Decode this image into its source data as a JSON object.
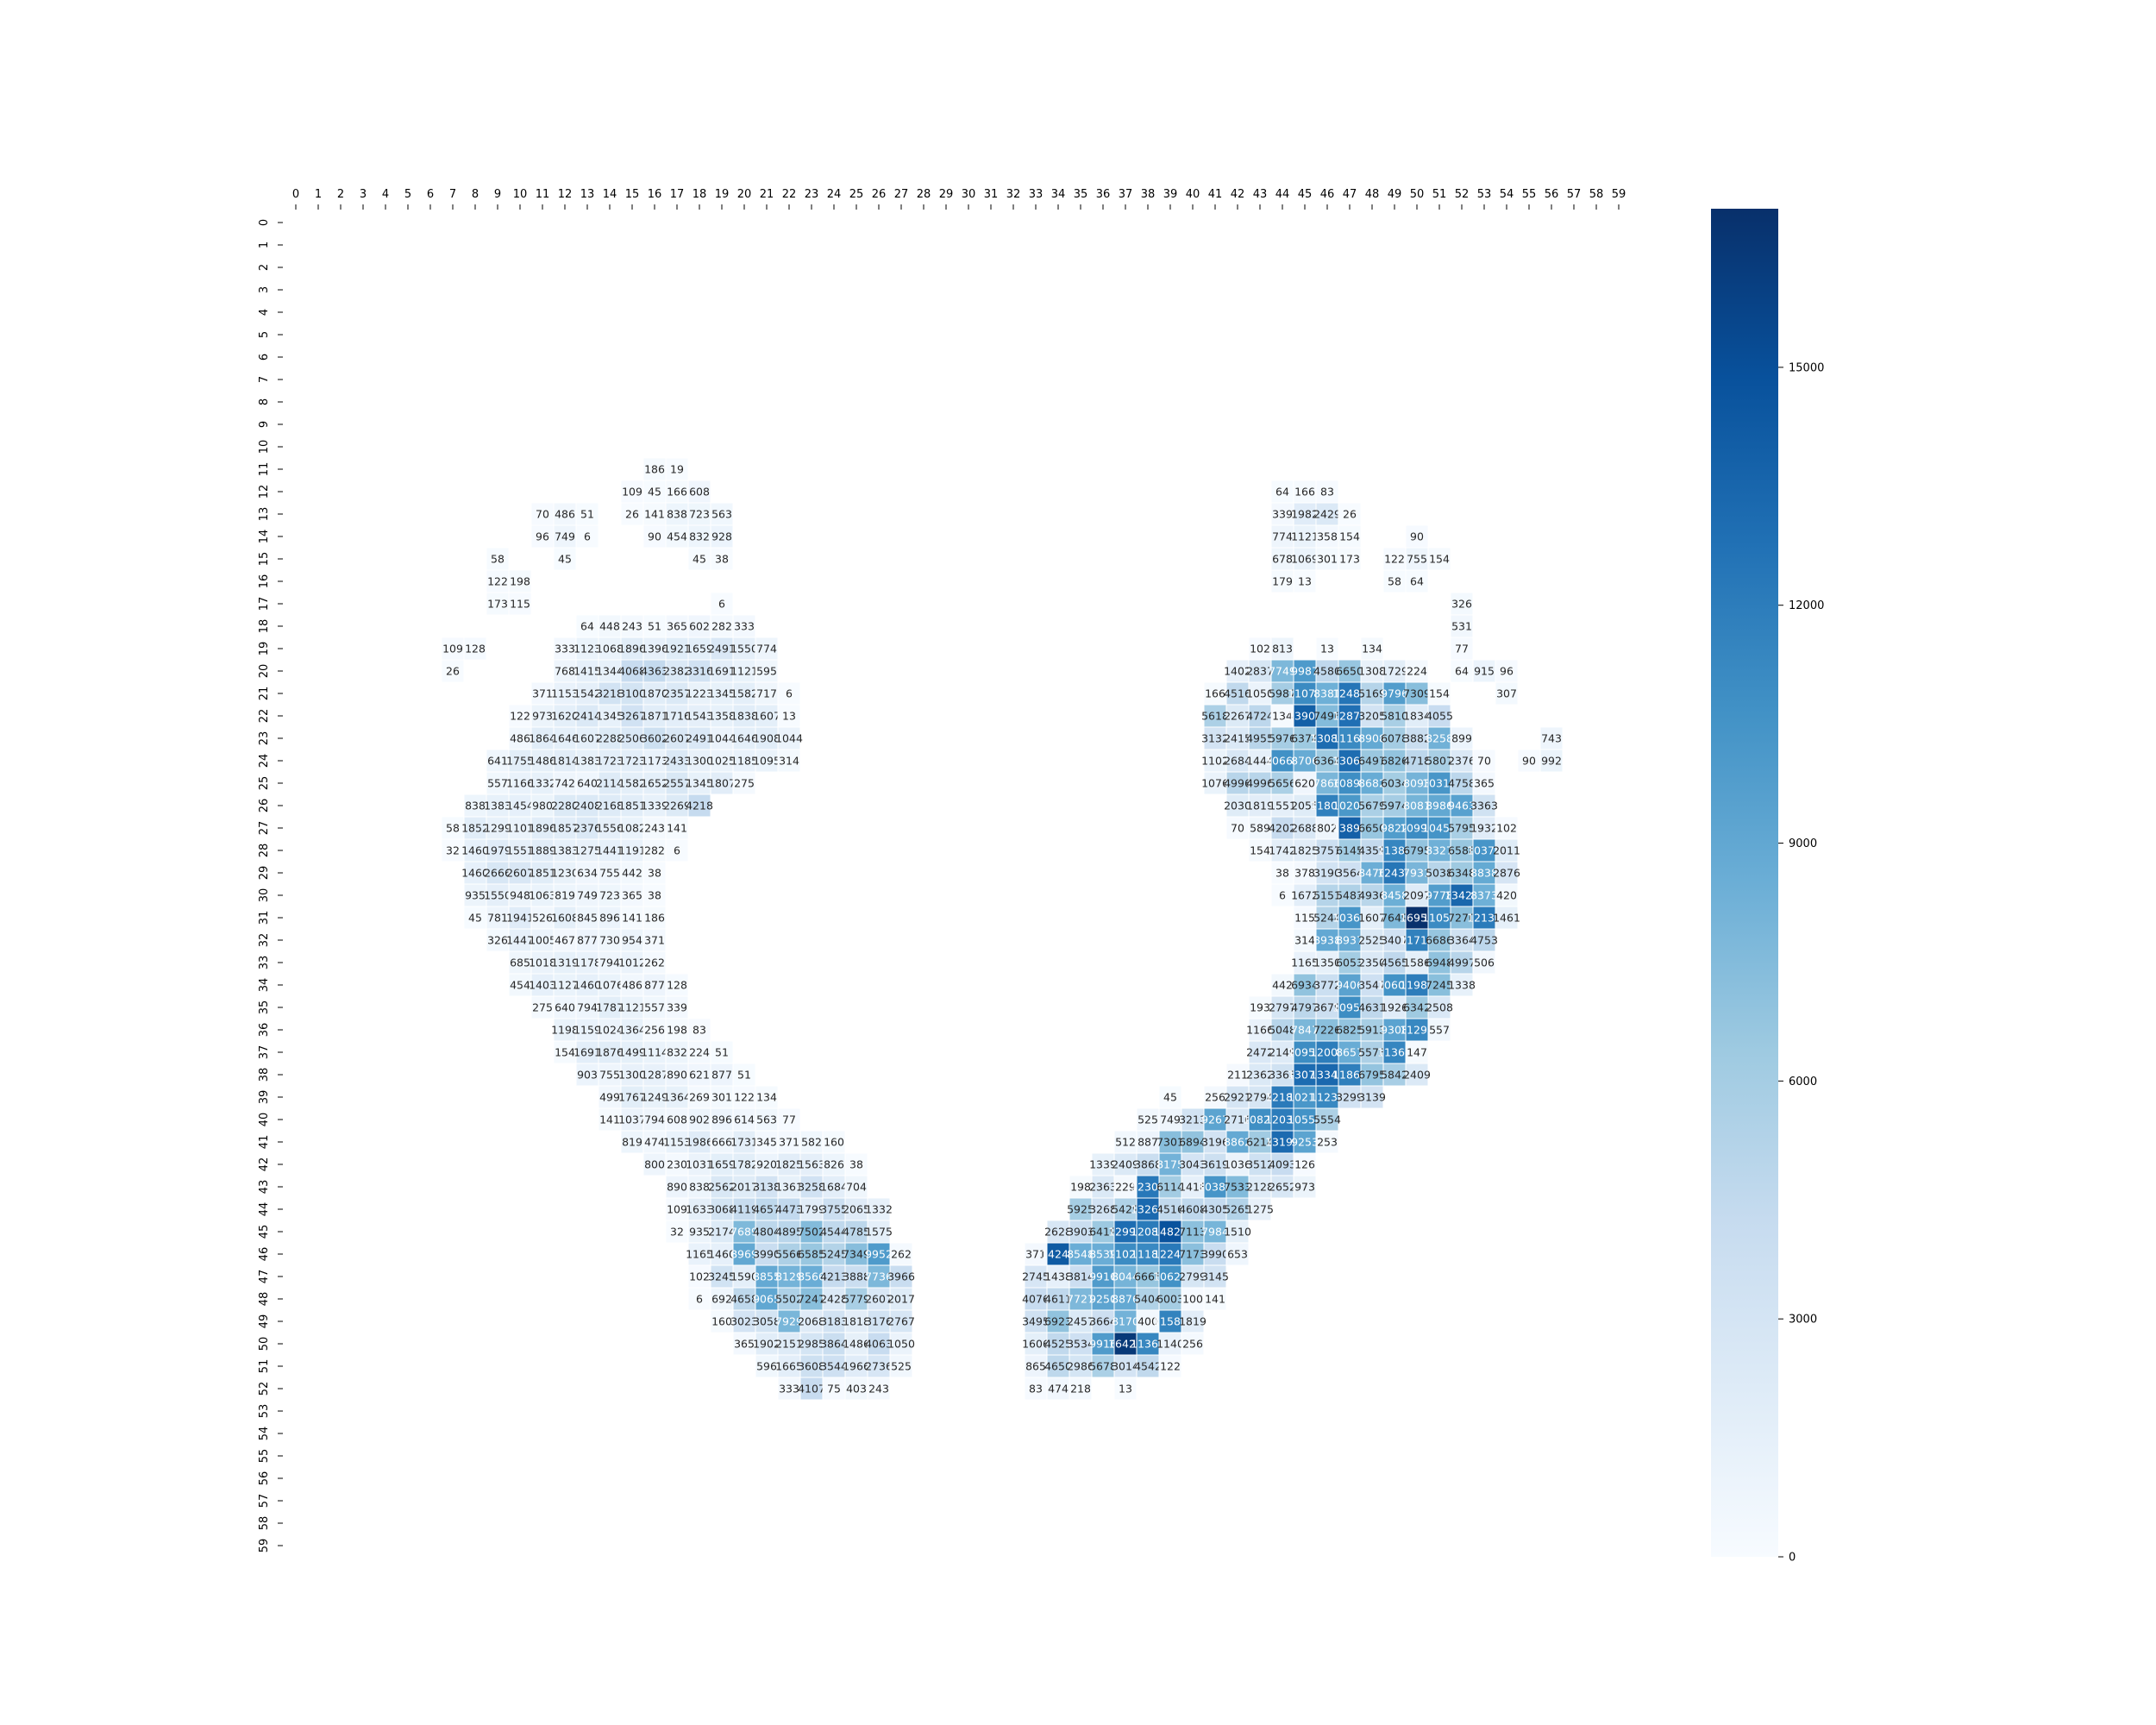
{
  "chart_data": {
    "type": "heatmap",
    "title": "",
    "xlabel": "",
    "ylabel": "",
    "x_ticks": [
      "0",
      "1",
      "2",
      "3",
      "4",
      "5",
      "6",
      "7",
      "8",
      "9",
      "10",
      "11",
      "12",
      "13",
      "14",
      "15",
      "16",
      "17",
      "18",
      "19",
      "20",
      "21",
      "22",
      "23",
      "24",
      "25",
      "26",
      "27",
      "28",
      "29",
      "30",
      "31",
      "32",
      "33",
      "34",
      "35",
      "36",
      "37",
      "38",
      "39",
      "40",
      "41",
      "42",
      "43",
      "44",
      "45",
      "46",
      "47",
      "48",
      "49",
      "50",
      "51",
      "52",
      "53",
      "54",
      "55",
      "56",
      "57",
      "58",
      "59"
    ],
    "y_ticks": [
      "0",
      "1",
      "2",
      "3",
      "4",
      "5",
      "6",
      "7",
      "8",
      "9",
      "10",
      "11",
      "12",
      "13",
      "14",
      "15",
      "16",
      "17",
      "18",
      "19",
      "20",
      "21",
      "22",
      "23",
      "24",
      "25",
      "26",
      "27",
      "28",
      "29",
      "30",
      "31",
      "32",
      "33",
      "34",
      "35",
      "36",
      "37",
      "38",
      "39",
      "40",
      "41",
      "42",
      "43",
      "44",
      "45",
      "46",
      "47",
      "48",
      "49",
      "50",
      "51",
      "52",
      "53",
      "54",
      "55",
      "56",
      "57",
      "58",
      "59"
    ],
    "x_axis_position": "top",
    "colormap": "Blues",
    "color_low": "#f7fbff",
    "color_high": "#08306b",
    "vmin": 0,
    "vmax": 17000,
    "colorbar": {
      "ticks": [
        0,
        3000,
        6000,
        9000,
        12000,
        15000
      ],
      "tick_labels": [
        "0",
        "3000",
        "6000",
        "9000",
        "12000",
        "15000"
      ],
      "position": "right"
    },
    "annotated": true,
    "rows": {
      "11": {
        "16": 186,
        "17": 19
      },
      "12": {
        "15": 109,
        "16": 45,
        "17": 166,
        "18": 608,
        "44": 64,
        "45": 166,
        "46": 83
      },
      "13": {
        "11": 70,
        "12": 486,
        "13": 51,
        "15": 26,
        "16": 141,
        "17": 838,
        "18": 723,
        "19": 563,
        "44": 339,
        "45": 1982,
        "46": 2429,
        "47": 26
      },
      "14": {
        "11": 96,
        "12": 749,
        "13": 6,
        "16": 90,
        "17": 454,
        "18": 832,
        "19": 928,
        "44": 774,
        "45": 1121,
        "46": 358,
        "47": 154,
        "50": 90
      },
      "15": {
        "9": 58,
        "12": 45,
        "18": 45,
        "19": 38,
        "44": 678,
        "45": 1069,
        "46": 301,
        "47": 173,
        "49": 122,
        "50": 755,
        "51": 154
      },
      "16": {
        "9": 122,
        "10": 198,
        "44": 179,
        "45": 13,
        "49": 58,
        "50": 64
      },
      "17": {
        "9": 173,
        "10": 115,
        "19": 6,
        "52": 326
      },
      "18": {
        "13": 64,
        "14": 448,
        "15": 243,
        "16": 51,
        "17": 365,
        "18": 602,
        "19": 282,
        "20": 333,
        "52": 531
      },
      "19": {
        "7": 109,
        "8": 128,
        "12": 333,
        "13": 1123,
        "14": 1068,
        "15": 1896,
        "16": 1396,
        "17": 1921,
        "18": 1659,
        "19": 2491,
        "20": 1550,
        "21": 774,
        "43": 102,
        "44": 813,
        "46": 13,
        "48": 134,
        "52": 77
      },
      "20": {
        "7": 26,
        "12": 768,
        "13": 1415,
        "14": 1344,
        "15": 4068,
        "16": 4363,
        "17": 2382,
        "18": 3316,
        "19": 1691,
        "20": 1121,
        "21": 595,
        "42": 1402,
        "43": 2837,
        "44": 7749,
        "45": 9987,
        "46": 4580,
        "47": 6650,
        "48": 1308,
        "49": 1729,
        "50": 224,
        "52": 64,
        "53": 915,
        "54": 96
      },
      "21": {
        "11": 371,
        "12": 1153,
        "13": 1542,
        "14": 3218,
        "15": 3100,
        "16": 1870,
        "17": 2357,
        "18": 1223,
        "19": 1345,
        "20": 1582,
        "21": 717,
        "22": 6,
        "41": 166,
        "42": 4516,
        "43": 1050,
        "44": 5987,
        "45": 11070,
        "46": 8381,
        "47": 12485,
        "48": 5169,
        "49": 9796,
        "50": 7309,
        "51": 154,
        "54": 307
      },
      "22": {
        "10": 122,
        "11": 973,
        "12": 1620,
        "13": 2414,
        "14": 1345,
        "15": 3267,
        "16": 1871,
        "17": 1716,
        "18": 1543,
        "19": 1358,
        "20": 1838,
        "21": 1607,
        "22": 13,
        "41": 5618,
        "42": 2267,
        "43": 4724,
        "44": 134,
        "45": 13902,
        "46": 7496,
        "47": 12874,
        "48": 3205,
        "49": 5810,
        "50": 1834,
        "51": 4055
      },
      "23": {
        "10": 486,
        "11": 1864,
        "12": 1646,
        "13": 1607,
        "14": 2288,
        "15": 2506,
        "16": 3602,
        "17": 2607,
        "18": 2491,
        "19": 1044,
        "20": 1646,
        "21": 1908,
        "22": 1044,
        "41": 3132,
        "42": 2415,
        "43": 4955,
        "44": 5976,
        "45": 6374,
        "46": 13083,
        "47": 11160,
        "48": 8908,
        "49": 6078,
        "50": 3882,
        "51": 8258,
        "52": 899,
        "56": 743
      },
      "24": {
        "9": 641,
        "10": 1755,
        "11": 1486,
        "12": 1814,
        "13": 1383,
        "14": 1723,
        "15": 1723,
        "16": 1173,
        "17": 2433,
        "18": 1300,
        "19": 1025,
        "20": 1185,
        "21": 1095,
        "22": 314,
        "41": 1102,
        "42": 2684,
        "43": 1444,
        "44": 10668,
        "45": 8706,
        "46": 6364,
        "47": 13062,
        "48": 6497,
        "49": 6826,
        "50": 4718,
        "51": 5807,
        "52": 2376,
        "53": 70,
        "55": 90,
        "56": 992
      },
      "25": {
        "9": 557,
        "10": 1166,
        "11": 1332,
        "12": 742,
        "13": 640,
        "14": 2114,
        "15": 1582,
        "16": 1652,
        "17": 2557,
        "18": 1345,
        "19": 1807,
        "20": 275,
        "41": 1076,
        "42": 4996,
        "43": 4996,
        "44": 5656,
        "45": 620,
        "46": 7866,
        "47": 10895,
        "48": 8682,
        "49": 6034,
        "50": 8093,
        "51": 10316,
        "52": 4758,
        "53": 365
      },
      "26": {
        "8": 838,
        "9": 1383,
        "10": 1454,
        "11": 980,
        "12": 2280,
        "13": 2408,
        "14": 2168,
        "15": 1851,
        "16": 1339,
        "17": 2269,
        "18": 4218,
        "42": 2030,
        "43": 1819,
        "44": 1551,
        "45": 2055,
        "46": 11802,
        "47": 10207,
        "48": 5679,
        "49": 5974,
        "50": 8081,
        "51": 8986,
        "52": 9463,
        "53": 3363
      },
      "27": {
        "7": 58,
        "8": 1852,
        "9": 1299,
        "10": 1101,
        "11": 1896,
        "12": 1857,
        "13": 2376,
        "14": 1556,
        "15": 1082,
        "16": 243,
        "17": 141,
        "42": 70,
        "43": 589,
        "44": 4202,
        "45": 2688,
        "46": 802,
        "47": 13891,
        "48": 6650,
        "49": 9822,
        "50": 10990,
        "51": 10456,
        "52": 5795,
        "53": 1932,
        "54": 102
      },
      "28": {
        "7": 32,
        "8": 1460,
        "9": 1979,
        "10": 1551,
        "11": 1889,
        "12": 1383,
        "13": 1275,
        "14": 1441,
        "15": 1191,
        "16": 282,
        "17": 6,
        "43": 154,
        "44": 1742,
        "45": 1825,
        "46": 3757,
        "47": 6145,
        "48": 4359,
        "49": 11382,
        "50": 6795,
        "51": 8327,
        "52": 6588,
        "53": 10372,
        "54": 2011
      },
      "29": {
        "8": 1460,
        "9": 2666,
        "10": 2607,
        "11": 1851,
        "12": 1230,
        "13": 634,
        "14": 755,
        "15": 442,
        "16": 38,
        "44": 38,
        "45": 378,
        "46": 3190,
        "47": 3564,
        "48": 8476,
        "49": 12438,
        "50": 7931,
        "51": 5038,
        "52": 6348,
        "53": 8838,
        "54": 2876
      },
      "30": {
        "8": 935,
        "9": 1550,
        "10": 948,
        "11": 1063,
        "12": 819,
        "13": 749,
        "14": 723,
        "15": 365,
        "16": 38,
        "44": 6,
        "45": 1672,
        "46": 5151,
        "47": 5483,
        "48": 4936,
        "49": 8458,
        "50": 2097,
        "51": 9778,
        "52": 13427,
        "53": 8373,
        "54": 420
      },
      "31": {
        "8": 45,
        "9": 781,
        "10": 1941,
        "11": 526,
        "12": 1608,
        "13": 845,
        "14": 896,
        "15": 141,
        "16": 186,
        "45": 115,
        "46": 5244,
        "47": 10365,
        "48": 1607,
        "49": 7649,
        "50": 16953,
        "51": 11057,
        "52": 7270,
        "53": 12137,
        "54": 1461
      },
      "32": {
        "9": 326,
        "10": 1447,
        "11": 1005,
        "12": 467,
        "13": 877,
        "14": 730,
        "15": 954,
        "16": 371,
        "45": 314,
        "46": 8938,
        "47": 8937,
        "48": 2525,
        "49": 3407,
        "50": 11716,
        "51": 6686,
        "52": 3364,
        "53": 4753
      },
      "33": {
        "10": 685,
        "11": 1018,
        "12": 1319,
        "13": 1178,
        "14": 794,
        "15": 1012,
        "16": 262,
        "45": 1165,
        "46": 1350,
        "47": 6053,
        "48": 2350,
        "49": 4565,
        "50": 1586,
        "51": 6948,
        "52": 4997,
        "53": 506
      },
      "34": {
        "10": 454,
        "11": 1403,
        "12": 1127,
        "13": 1460,
        "14": 1076,
        "15": 486,
        "16": 877,
        "17": 128,
        "44": 442,
        "45": 6934,
        "46": 3772,
        "47": 9406,
        "48": 3547,
        "49": 10603,
        "50": 11987,
        "51": 7245,
        "52": 1338
      },
      "35": {
        "11": 275,
        "12": 640,
        "13": 794,
        "14": 1787,
        "15": 1121,
        "16": 557,
        "17": 339,
        "43": 193,
        "44": 2797,
        "45": 4797,
        "46": 3679,
        "47": 10956,
        "48": 4631,
        "49": 1926,
        "50": 6342,
        "51": 2508
      },
      "36": {
        "12": 1198,
        "13": 1159,
        "14": 1024,
        "15": 1364,
        "16": 256,
        "17": 198,
        "18": 83,
        "43": 1166,
        "44": 5048,
        "45": 7847,
        "46": 7226,
        "47": 6825,
        "48": 5913,
        "49": 9308,
        "50": 11298,
        "51": 557
      },
      "37": {
        "12": 154,
        "13": 1691,
        "14": 1876,
        "15": 1499,
        "16": 1114,
        "17": 832,
        "18": 224,
        "19": 51,
        "43": 2472,
        "44": 2149,
        "45": 10950,
        "46": 12000,
        "47": 8657,
        "48": 5573,
        "49": 11369,
        "50": 147
      },
      "38": {
        "13": 903,
        "14": 755,
        "15": 1300,
        "16": 1287,
        "17": 890,
        "18": 621,
        "19": 877,
        "20": 51,
        "42": 211,
        "43": 2362,
        "44": 3363,
        "45": 13070,
        "46": 13347,
        "47": 11867,
        "48": 6795,
        "49": 5842,
        "50": 2409
      },
      "39": {
        "14": 499,
        "15": 1767,
        "16": 1249,
        "17": 1364,
        "18": 269,
        "19": 301,
        "20": 122,
        "21": 134,
        "39": 45,
        "41": 256,
        "42": 2921,
        "43": 2794,
        "44": 12180,
        "45": 10217,
        "46": 11238,
        "47": 3299,
        "48": 3139
      },
      "40": {
        "14": 141,
        "15": 1037,
        "16": 794,
        "17": 608,
        "18": 902,
        "19": 896,
        "20": 614,
        "21": 563,
        "22": 77,
        "38": 525,
        "39": 749,
        "40": 3213,
        "41": 9267,
        "42": 2716,
        "43": 10822,
        "44": 12037,
        "45": 10553,
        "46": 5554
      },
      "41": {
        "15": 819,
        "16": 474,
        "17": 1153,
        "18": 1986,
        "19": 666,
        "20": 1731,
        "21": 345,
        "22": 371,
        "23": 582,
        "24": 160,
        "37": 512,
        "38": 887,
        "39": 7301,
        "40": 6894,
        "41": 3196,
        "42": 8862,
        "43": 6214,
        "44": 13194,
        "45": 9253,
        "46": 253
      },
      "42": {
        "16": 800,
        "17": 230,
        "18": 1031,
        "19": 1659,
        "20": 1782,
        "21": 920,
        "22": 1825,
        "23": 1563,
        "24": 826,
        "25": 38,
        "36": 1339,
        "37": 2409,
        "38": 3868,
        "39": 8175,
        "40": 3043,
        "41": 3619,
        "42": 1036,
        "43": 3512,
        "44": 4093,
        "45": 126
      },
      "43": {
        "17": 890,
        "18": 838,
        "19": 2562,
        "20": 2017,
        "21": 3138,
        "22": 1361,
        "23": 3258,
        "24": 1684,
        "25": 704,
        "35": 198,
        "36": 2363,
        "37": 229,
        "38": 12306,
        "39": 6114,
        "40": 1418,
        "41": 10387,
        "42": 7533,
        "43": 2128,
        "44": 2652,
        "45": 973
      },
      "44": {
        "17": 109,
        "18": 1633,
        "19": 3068,
        "20": 4119,
        "21": 4657,
        "22": 4473,
        "23": 1799,
        "24": 3755,
        "25": 2065,
        "26": 1332,
        "35": 5925,
        "36": 3268,
        "37": 5429,
        "38": 13261,
        "39": 4516,
        "40": 4608,
        "41": 4305,
        "42": 5265,
        "43": 1275
      },
      "45": {
        "17": 32,
        "18": 935,
        "19": 2174,
        "20": 7689,
        "21": 4804,
        "22": 4895,
        "23": 7502,
        "24": 4544,
        "25": 4785,
        "26": 1575,
        "34": 2628,
        "35": 3903,
        "36": 6419,
        "37": 12992,
        "38": 12088,
        "39": 14824,
        "40": 7113,
        "41": 7984,
        "42": 1510
      },
      "46": {
        "18": 1165,
        "19": 1460,
        "20": 8969,
        "21": 3990,
        "22": 5566,
        "23": 6585,
        "24": 5245,
        "25": 7349,
        "26": 9952,
        "27": 262,
        "33": 371,
        "34": 14242,
        "35": 8548,
        "36": 8539,
        "37": 11023,
        "38": 11187,
        "39": 12249,
        "40": 7173,
        "41": 3990,
        "42": 653
      },
      "47": {
        "18": 102,
        "19": 3245,
        "20": 1590,
        "21": 8855,
        "22": 8129,
        "23": 8566,
        "24": 4213,
        "25": 3888,
        "26": 7736,
        "27": 3966,
        "33": 2745,
        "34": 1438,
        "35": 3814,
        "36": 9916,
        "37": 8044,
        "38": 6665,
        "39": 10620,
        "40": 2799,
        "41": 3145
      },
      "48": {
        "18": 6,
        "19": 692,
        "20": 4658,
        "21": 9065,
        "22": 5502,
        "23": 7247,
        "24": 2428,
        "25": 5779,
        "26": 2607,
        "27": 2017,
        "33": 4076,
        "34": 4611,
        "35": 7727,
        "36": 9250,
        "37": 8876,
        "38": 5404,
        "39": 6003,
        "40": 100,
        "41": 141
      },
      "49": {
        "19": 160,
        "20": 3023,
        "21": 3058,
        "22": 7929,
        "23": 2068,
        "24": 3183,
        "25": 1818,
        "26": 3176,
        "27": 2767,
        "33": 3495,
        "34": 6923,
        "35": 2457,
        "36": 3664,
        "37": 8170,
        "38": 400,
        "39": 11586,
        "40": 1819
      },
      "50": {
        "20": 365,
        "21": 1902,
        "22": 2151,
        "23": 2985,
        "24": 3864,
        "25": 1486,
        "26": 4063,
        "27": 1050,
        "33": 1606,
        "34": 4525,
        "35": 3534,
        "36": 9916,
        "37": 16428,
        "38": 11361,
        "39": 1140,
        "40": 256
      },
      "51": {
        "21": 596,
        "22": 1665,
        "23": 3608,
        "24": 3544,
        "25": 1966,
        "26": 2736,
        "27": 525,
        "33": 865,
        "34": 4650,
        "35": 2986,
        "36": 5678,
        "37": 3014,
        "38": 4542,
        "39": 122
      },
      "52": {
        "22": 333,
        "23": 4107,
        "24": 75,
        "25": 403,
        "26": 243,
        "33": 83,
        "34": 474,
        "35": 218,
        "37": 13
      }
    }
  }
}
